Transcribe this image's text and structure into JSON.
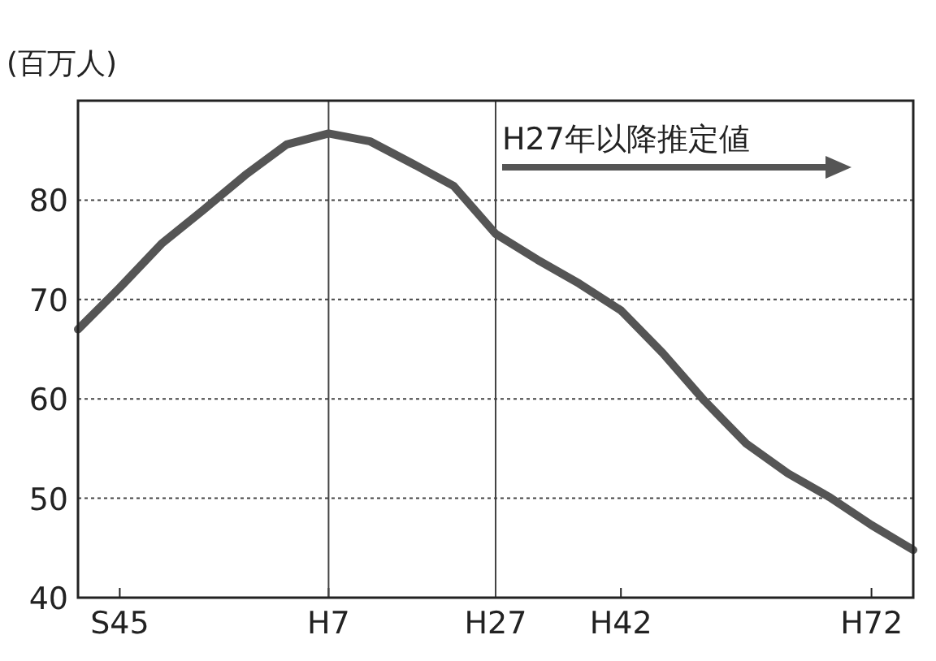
{
  "chart_data": {
    "type": "line",
    "ylabel": "(百万人)",
    "categories": [
      null,
      "S45",
      null,
      null,
      null,
      null,
      "H7",
      null,
      null,
      null,
      "H27",
      null,
      null,
      "H42",
      null,
      null,
      null,
      null,
      null,
      "H72",
      null
    ],
    "series": [
      {
        "color": "#555555",
        "values": [
          67,
          71.2,
          75.6,
          79,
          82.5,
          85.6,
          86.7,
          85.9,
          83.7,
          81.4,
          76.6,
          74,
          71.6,
          68.9,
          64.6,
          59.8,
          55.5,
          52.5,
          50.1,
          47.3,
          44.8
        ]
      }
    ],
    "ylim": [
      40,
      90
    ],
    "yticks": [
      40,
      50,
      60,
      70,
      80
    ],
    "grid": "y",
    "ref_lines": [
      {
        "axis": "x",
        "value": "H7",
        "label": null
      },
      {
        "axis": "x",
        "value": "H27",
        "label": "H27年以降推定値"
      }
    ]
  }
}
